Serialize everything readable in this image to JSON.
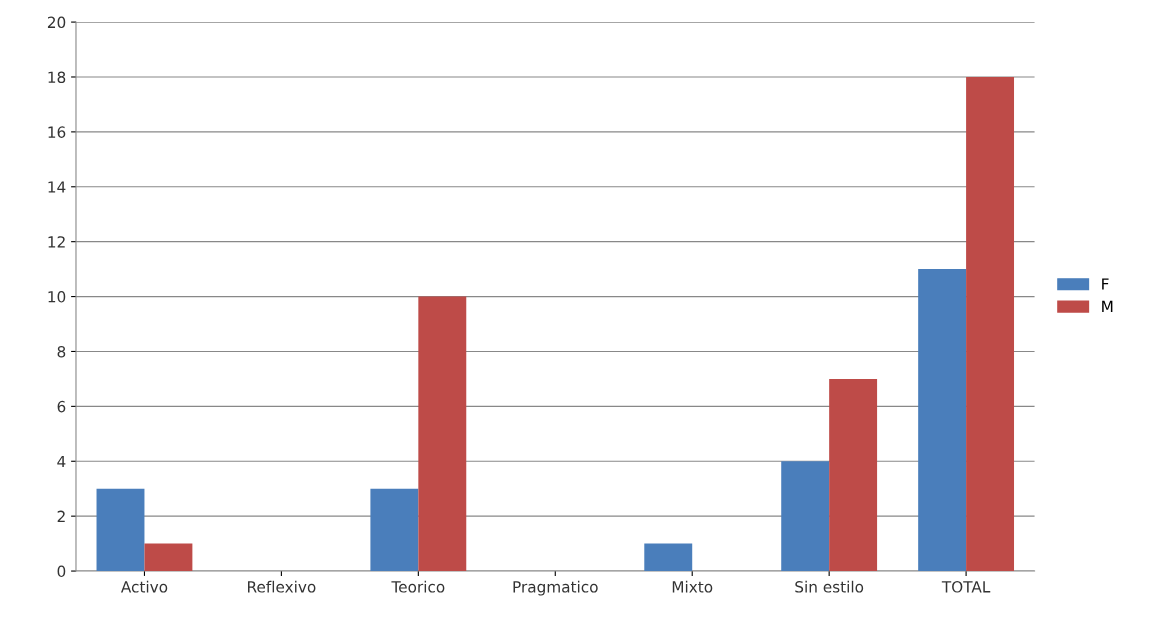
{
  "chart_data": {
    "type": "bar",
    "categories": [
      "Activo",
      "Reflexivo",
      "Teorico",
      "Pragmatico",
      "Mixto",
      "Sin estilo",
      "TOTAL"
    ],
    "series": [
      {
        "name": "F",
        "color": "#4a7ebb",
        "values": [
          3,
          0,
          3,
          0,
          1,
          4,
          11
        ]
      },
      {
        "name": "M",
        "color": "#be4b48",
        "values": [
          1,
          0,
          10,
          0,
          0,
          7,
          18
        ]
      }
    ],
    "ylim": [
      0,
      20
    ],
    "yticks": [
      0,
      2,
      4,
      6,
      8,
      10,
      12,
      14,
      16,
      18,
      20
    ],
    "grid": "y",
    "legend": "right"
  }
}
